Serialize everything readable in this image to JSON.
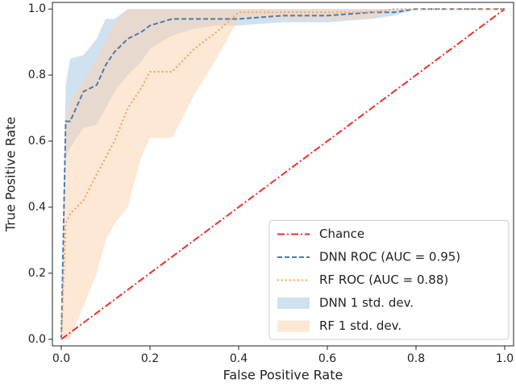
{
  "chart_data": {
    "type": "line",
    "x_label": "False Positive Rate",
    "y_label": "True Positive Rate",
    "xlim": [
      -0.02,
      1.02
    ],
    "ylim": [
      -0.02,
      1.02
    ],
    "xticks": [
      {
        "value": 0,
        "label": "0.0"
      },
      0.2,
      0.4,
      0.6,
      0.8,
      {
        "value": 1,
        "label": "1.0"
      }
    ],
    "yticks": [
      {
        "value": 0,
        "label": "0.0"
      },
      0.2,
      0.4,
      0.6,
      0.8,
      {
        "value": 1,
        "label": "1.0"
      }
    ],
    "legend": "lower right",
    "series": [
      {
        "name": "Chance",
        "color": "#e8302c",
        "style": "dash-dot",
        "x": [
          0,
          1
        ],
        "values": [
          0,
          1
        ]
      },
      {
        "name": "DNN ROC (AUC = 0.95)",
        "color": "#4a7bb0",
        "style": "dashed",
        "x": [
          0,
          0.01,
          0.02,
          0.05,
          0.08,
          0.1,
          0.12,
          0.15,
          0.18,
          0.2,
          0.25,
          0.3,
          0.35,
          0.4,
          0.5,
          0.6,
          0.7,
          0.75,
          0.8,
          0.9,
          1.0
        ],
        "values": [
          0,
          0.66,
          0.66,
          0.75,
          0.77,
          0.83,
          0.87,
          0.91,
          0.93,
          0.95,
          0.97,
          0.97,
          0.97,
          0.97,
          0.98,
          0.98,
          0.99,
          0.99,
          1.0,
          1.0,
          1.0
        ]
      },
      {
        "name": "RF ROC (AUC = 0.88)",
        "color": "#f4a15d",
        "style": "dotted",
        "x": [
          0,
          0.01,
          0.02,
          0.05,
          0.08,
          0.1,
          0.12,
          0.15,
          0.18,
          0.2,
          0.25,
          0.3,
          0.35,
          0.4,
          0.5,
          0.6,
          0.7,
          0.75,
          0.8,
          0.9,
          1.0
        ],
        "values": [
          0,
          0.35,
          0.38,
          0.42,
          0.5,
          0.55,
          0.6,
          0.7,
          0.76,
          0.81,
          0.81,
          0.88,
          0.93,
          0.99,
          0.99,
          0.99,
          0.99,
          1.0,
          1.0,
          1.0,
          1.0
        ]
      }
    ],
    "bands": [
      {
        "name": "DNN 1 std. dev.",
        "color": "#a9c9e4",
        "x": [
          0,
          0.01,
          0.02,
          0.05,
          0.08,
          0.1,
          0.12,
          0.15,
          0.18,
          0.2,
          0.25,
          0.3,
          0.35,
          0.4,
          0.5,
          0.6,
          0.7,
          0.75,
          0.8,
          0.9,
          1.0
        ],
        "upper": [
          0,
          0.77,
          0.85,
          0.86,
          0.91,
          0.97,
          0.97,
          1.0,
          1.0,
          1.0,
          1.0,
          1.0,
          1.0,
          1.0,
          1.0,
          1.0,
          1.0,
          1.0,
          1.0,
          1.0,
          1.0
        ],
        "lower": [
          0,
          0.55,
          0.58,
          0.64,
          0.65,
          0.7,
          0.75,
          0.8,
          0.84,
          0.88,
          0.92,
          0.94,
          0.95,
          0.95,
          0.96,
          0.96,
          0.97,
          0.98,
          1.0,
          1.0,
          1.0
        ]
      },
      {
        "name": "RF 1 std. dev.",
        "color": "#fcd3b2",
        "x": [
          0,
          0.01,
          0.02,
          0.05,
          0.08,
          0.1,
          0.12,
          0.15,
          0.18,
          0.2,
          0.25,
          0.3,
          0.35,
          0.4,
          0.5,
          0.6,
          0.7,
          0.75,
          0.8,
          0.9,
          1.0
        ],
        "upper": [
          0,
          0.67,
          0.72,
          0.78,
          0.85,
          0.9,
          0.96,
          1.0,
          1.0,
          1.0,
          1.0,
          1.0,
          1.0,
          1.0,
          1.0,
          1.0,
          1.0,
          1.0,
          1.0,
          1.0,
          1.0
        ],
        "lower": [
          0,
          0.0,
          0.0,
          0.1,
          0.2,
          0.3,
          0.35,
          0.4,
          0.55,
          0.61,
          0.61,
          0.74,
          0.85,
          0.97,
          0.97,
          0.97,
          0.97,
          1.0,
          1.0,
          1.0,
          1.0
        ]
      }
    ]
  }
}
